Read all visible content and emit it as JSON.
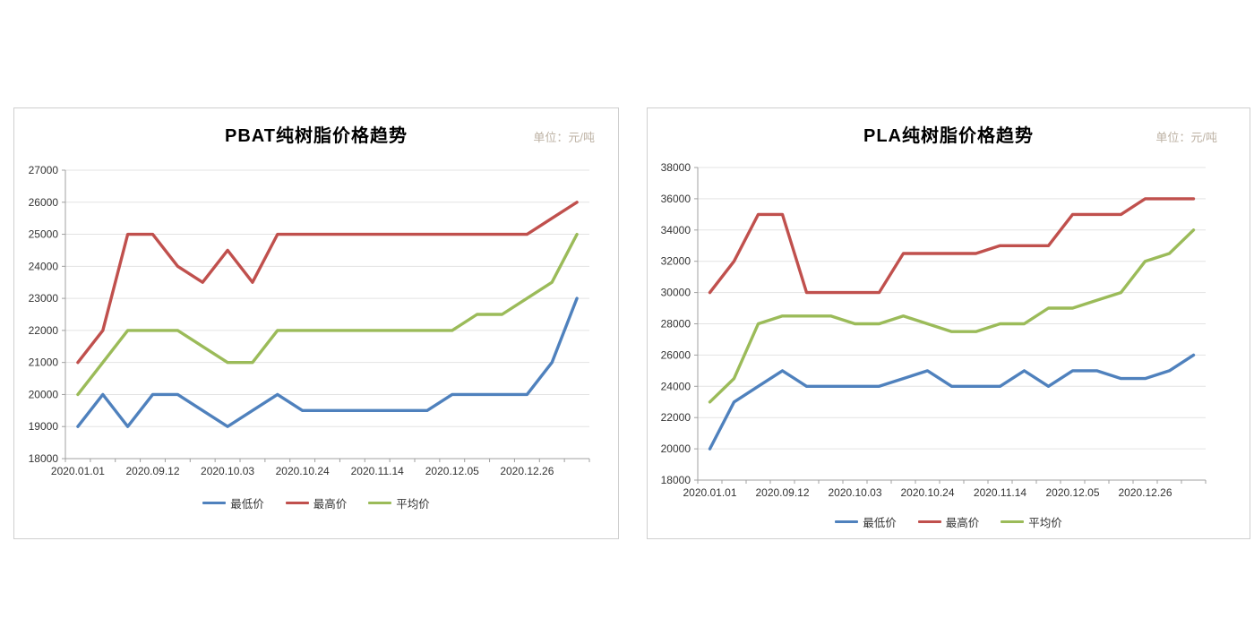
{
  "page": {
    "background": "#ffffff"
  },
  "chart_data": [
    {
      "type": "line",
      "title": "PBAT纯树脂价格趋势",
      "unit_label": "单位：元/吨",
      "xlabel": "",
      "ylabel": "",
      "y_axis": {
        "min": 18000,
        "max": 27000,
        "step": 1000
      },
      "grid": true,
      "legend_position": "bottom",
      "n_points": 21,
      "x_label_interval": 3,
      "x_tick_labels": [
        "2020.01.01",
        "2020.09.12",
        "2020.10.03",
        "2020.10.24",
        "2020.11.14",
        "2020.12.05",
        "2020.12.26"
      ],
      "series": [
        {
          "name": "最低价",
          "color": "#4F81BD",
          "values": [
            19000,
            20000,
            19000,
            20000,
            20000,
            19500,
            19000,
            19500,
            20000,
            19500,
            19500,
            19500,
            19500,
            19500,
            19500,
            20000,
            20000,
            20000,
            20000,
            21000,
            23000
          ]
        },
        {
          "name": "最高价",
          "color": "#C0504D",
          "values": [
            21000,
            22000,
            25000,
            25000,
            24000,
            23500,
            24500,
            23500,
            25000,
            25000,
            25000,
            25000,
            25000,
            25000,
            25000,
            25000,
            25000,
            25000,
            25000,
            25500,
            26000
          ]
        },
        {
          "name": "平均价",
          "color": "#9BBB59",
          "values": [
            20000,
            21000,
            22000,
            22000,
            22000,
            21500,
            21000,
            21000,
            22000,
            22000,
            22000,
            22000,
            22000,
            22000,
            22000,
            22000,
            22500,
            22500,
            23000,
            23500,
            25000
          ]
        }
      ]
    },
    {
      "type": "line",
      "title": "PLA纯树脂价格趋势",
      "unit_label": "单位：元/吨",
      "xlabel": "",
      "ylabel": "",
      "y_axis": {
        "min": 18000,
        "max": 38000,
        "step": 2000
      },
      "grid": true,
      "legend_position": "bottom",
      "n_points": 21,
      "x_label_interval": 3,
      "x_tick_labels": [
        "2020.01.01",
        "2020.09.12",
        "2020.10.03",
        "2020.10.24",
        "2020.11.14",
        "2020.12.05",
        "2020.12.26"
      ],
      "series": [
        {
          "name": "最低价",
          "color": "#4F81BD",
          "values": [
            20000,
            23000,
            24000,
            25000,
            24000,
            24000,
            24000,
            24000,
            24500,
            25000,
            24000,
            24000,
            24000,
            25000,
            24000,
            25000,
            25000,
            24500,
            24500,
            25000,
            26000
          ]
        },
        {
          "name": "最高价",
          "color": "#C0504D",
          "values": [
            30000,
            32000,
            35000,
            35000,
            30000,
            30000,
            30000,
            30000,
            32500,
            32500,
            32500,
            32500,
            33000,
            33000,
            33000,
            35000,
            35000,
            35000,
            36000,
            36000,
            36000
          ]
        },
        {
          "name": "平均价",
          "color": "#9BBB59",
          "values": [
            23000,
            24500,
            28000,
            28500,
            28500,
            28500,
            28000,
            28000,
            28500,
            28000,
            27500,
            27500,
            28000,
            28000,
            29000,
            29000,
            29500,
            30000,
            32000,
            32500,
            34000
          ]
        }
      ]
    }
  ]
}
